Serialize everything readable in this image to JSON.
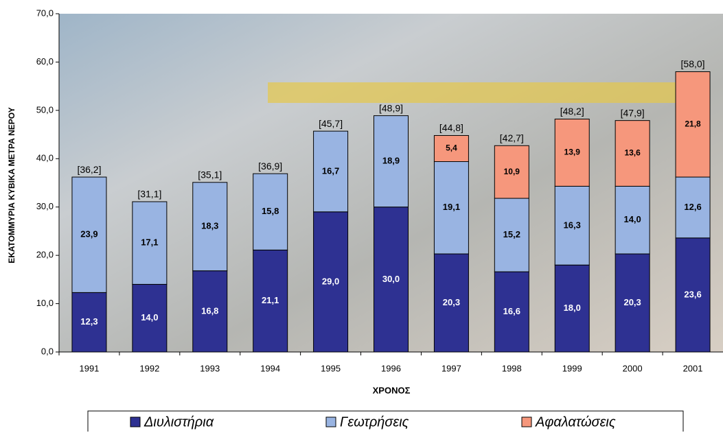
{
  "chart_data": {
    "type": "stacked_bar",
    "x_label": "ΧΡΟΝΟΣ",
    "y_label": "ΕΚΑΤΟΜΜΥΡΙΑ ΚΥΒΙΚΑ ΜΕΤΡΑ ΝΕΡΟΥ",
    "categories": [
      "1991",
      "1992",
      "1993",
      "1994",
      "1995",
      "1996",
      "1997",
      "1998",
      "1999",
      "2000",
      "2001"
    ],
    "series": [
      {
        "name": "Διυλιστήρια",
        "color": "#2e3192",
        "values": [
          12.3,
          14.0,
          16.8,
          21.1,
          29.0,
          30.0,
          20.3,
          16.6,
          18.0,
          20.3,
          23.6
        ],
        "value_labels": [
          "12,3",
          "14,0",
          "16,8",
          "21,1",
          "29,0",
          "30,0",
          "20,3",
          "16,6",
          "18,0",
          "20,3",
          "23,6"
        ]
      },
      {
        "name": "Γεωτρήσεις",
        "color": "#99b4e2",
        "values": [
          23.9,
          17.1,
          18.3,
          15.8,
          16.7,
          18.9,
          19.1,
          15.2,
          16.3,
          14.0,
          12.6
        ],
        "value_labels": [
          "23,9",
          "17,1",
          "18,3",
          "15,8",
          "16,7",
          "18,9",
          "19,1",
          "15,2",
          "16,3",
          "14,0",
          "12,6"
        ]
      },
      {
        "name": "Αφαλατώσεις",
        "color": "#f6977c",
        "values": [
          null,
          null,
          null,
          null,
          null,
          null,
          5.4,
          10.9,
          13.9,
          13.6,
          21.8
        ],
        "value_labels": [
          null,
          null,
          null,
          null,
          null,
          null,
          "5,4",
          "10,9",
          "13,9",
          "13,6",
          "21,8"
        ]
      }
    ],
    "totals": {
      "values": [
        36.2,
        31.1,
        35.1,
        36.9,
        45.7,
        48.9,
        44.8,
        42.7,
        48.2,
        47.9,
        58.0
      ],
      "value_labels": [
        "[36,2]",
        "[31,1]",
        "[35,1]",
        "[36,9]",
        "[45,7]",
        "[48,9]",
        "[44,8]",
        "[42,7]",
        "[48,2]",
        "[47,9]",
        "[58,0]"
      ]
    },
    "ylim": [
      0,
      70
    ],
    "yticks": [
      {
        "value": 0,
        "label": "0,0"
      },
      {
        "value": 10,
        "label": "10,0"
      },
      {
        "value": 20,
        "label": "20,0"
      },
      {
        "value": 30,
        "label": "30,0"
      },
      {
        "value": 40,
        "label": "40,0"
      },
      {
        "value": 50,
        "label": "50,0"
      },
      {
        "value": 60,
        "label": "60,0"
      },
      {
        "value": 70,
        "label": "70,0"
      }
    ]
  }
}
